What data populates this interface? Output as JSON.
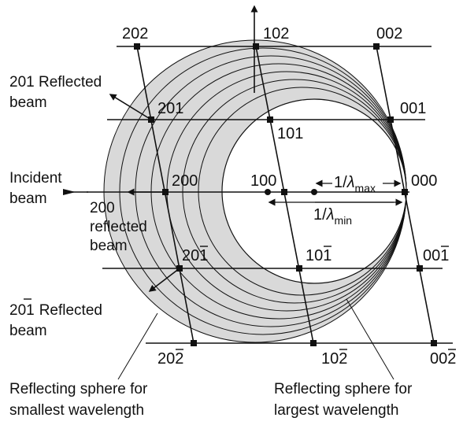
{
  "labels": {
    "r202": "202",
    "r102": "102",
    "r002": "002",
    "r201": "201",
    "r101": "101",
    "r001": "001",
    "r200": "200",
    "r100": "100",
    "r000": "000",
    "r20m1": "201",
    "r10m1": "101",
    "r00m1": "001",
    "r20m2": "202",
    "r10m2": "102",
    "r00m2": "002"
  },
  "wavelength": {
    "inv_lambda": "1/",
    "lambda_symbol": "λ",
    "max_sub": "max",
    "min_sub": "min"
  },
  "annotations": {
    "reflected_201": [
      "201 Reflected",
      "beam"
    ],
    "incident": [
      "Incident",
      "beam"
    ],
    "reflected_200": [
      "200",
      "reflected",
      "beam"
    ],
    "reflected_20m1": [
      "Reflected",
      "beam"
    ],
    "reflected_20m1_index": "201",
    "sphere_small": [
      "Reflecting sphere for",
      "smallest wavelength"
    ],
    "sphere_large": [
      "Reflecting sphere for",
      "largest wavelength"
    ]
  },
  "colors": {
    "sphere_fill": "#d9d9d9",
    "line": "#111111"
  }
}
